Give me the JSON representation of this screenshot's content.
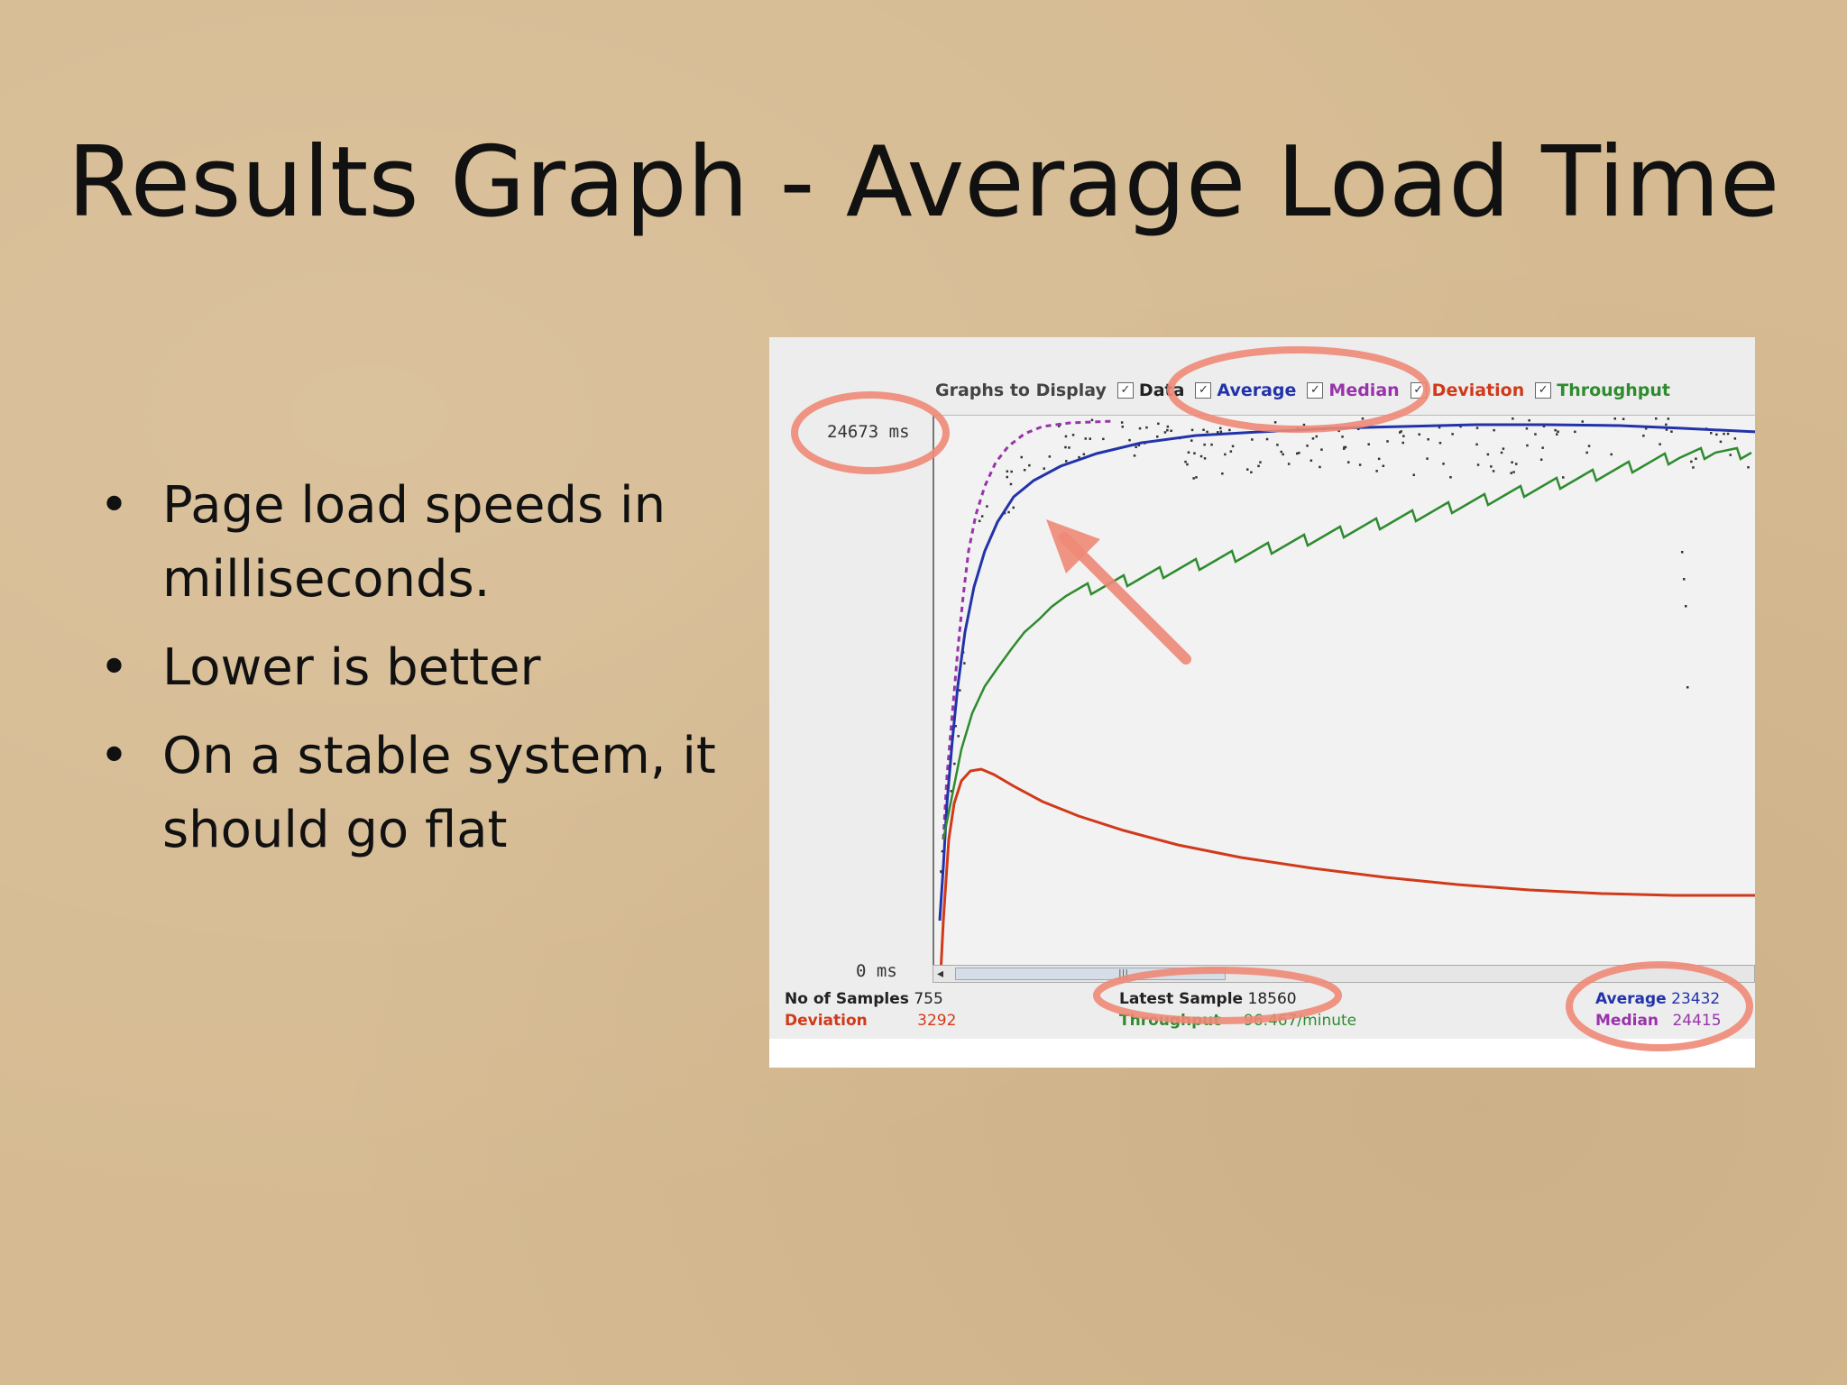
{
  "slide": {
    "title": "Results Graph - Average Load Time",
    "bullets": [
      "Page load speeds in milliseconds.",
      "Lower is better",
      "On a stable system, it should go flat"
    ]
  },
  "graph": {
    "legend": {
      "caption": "Graphs to Display",
      "items": [
        {
          "label": "Data",
          "color": "#222222",
          "checked": true
        },
        {
          "label": "Average",
          "color": "#2233aa",
          "checked": true
        },
        {
          "label": "Median",
          "color": "#9933aa",
          "checked": true
        },
        {
          "label": "Deviation",
          "color": "#d03a1a",
          "checked": true
        },
        {
          "label": "Throughput",
          "color": "#2e8b2e",
          "checked": true
        }
      ]
    },
    "y_max_label": "24673 ms",
    "y_min_label": "0 ms",
    "stats": {
      "samples_label": "No of Samples",
      "samples_value": "755",
      "deviation_label": "Deviation",
      "deviation_value": "3292",
      "latest_label": "Latest Sample",
      "latest_value": "18560",
      "throughput_label": "Throughput",
      "throughput_value": "96.467/minute",
      "average_label": "Average",
      "average_value": "23432",
      "median_label": "Median",
      "median_value": "24415"
    },
    "colors": {
      "average": "#2233aa",
      "median": "#9933aa",
      "deviation": "#d03a1a",
      "throughput": "#2e8b2e",
      "data": "#222222",
      "annotation": "#ee8877"
    }
  }
}
